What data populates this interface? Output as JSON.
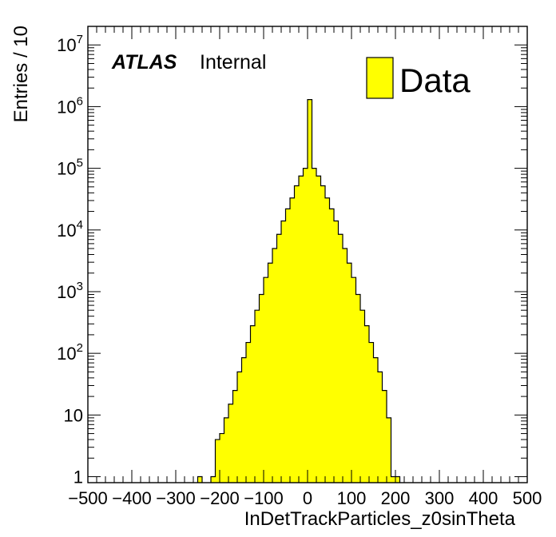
{
  "chart_data": {
    "type": "histogram",
    "xlabel": "InDetTrackParticles_z0sinTheta",
    "ylabel": "Entries / 10",
    "xlim": [
      -500,
      500
    ],
    "ylim": [
      0.8,
      20000000
    ],
    "yscale": "log",
    "atlas_label": "ATLAS",
    "atlas_status": "Internal",
    "legend": {
      "position": "top-right",
      "entries": [
        {
          "label": "Data",
          "color": "#ffff00"
        }
      ]
    },
    "fill_color": "#ffff00",
    "bin_width": 10,
    "bins": [
      {
        "x0": -250,
        "x1": -240,
        "y": 1
      },
      {
        "x0": -220,
        "x1": -210,
        "y": 1
      },
      {
        "x0": -210,
        "x1": -200,
        "y": 4
      },
      {
        "x0": -200,
        "x1": -190,
        "y": 5
      },
      {
        "x0": -190,
        "x1": -180,
        "y": 9
      },
      {
        "x0": -180,
        "x1": -170,
        "y": 15
      },
      {
        "x0": -170,
        "x1": -160,
        "y": 25
      },
      {
        "x0": -160,
        "x1": -150,
        "y": 50
      },
      {
        "x0": -150,
        "x1": -140,
        "y": 85
      },
      {
        "x0": -140,
        "x1": -130,
        "y": 150
      },
      {
        "x0": -130,
        "x1": -120,
        "y": 280
      },
      {
        "x0": -120,
        "x1": -110,
        "y": 500
      },
      {
        "x0": -110,
        "x1": -100,
        "y": 900
      },
      {
        "x0": -100,
        "x1": -90,
        "y": 1700
      },
      {
        "x0": -90,
        "x1": -80,
        "y": 2900
      },
      {
        "x0": -80,
        "x1": -70,
        "y": 5000
      },
      {
        "x0": -70,
        "x1": -60,
        "y": 8500
      },
      {
        "x0": -60,
        "x1": -50,
        "y": 14000
      },
      {
        "x0": -50,
        "x1": -40,
        "y": 22000
      },
      {
        "x0": -40,
        "x1": -30,
        "y": 33000
      },
      {
        "x0": -30,
        "x1": -20,
        "y": 52000
      },
      {
        "x0": -20,
        "x1": -10,
        "y": 75000
      },
      {
        "x0": -10,
        "x1": 0,
        "y": 100000
      },
      {
        "x0": 0,
        "x1": 10,
        "y": 1300000
      },
      {
        "x0": 10,
        "x1": 20,
        "y": 100000
      },
      {
        "x0": 20,
        "x1": 30,
        "y": 75000
      },
      {
        "x0": 30,
        "x1": 40,
        "y": 52000
      },
      {
        "x0": 40,
        "x1": 50,
        "y": 33000
      },
      {
        "x0": 50,
        "x1": 60,
        "y": 22000
      },
      {
        "x0": 60,
        "x1": 70,
        "y": 14000
      },
      {
        "x0": 70,
        "x1": 80,
        "y": 8500
      },
      {
        "x0": 80,
        "x1": 90,
        "y": 5000
      },
      {
        "x0": 90,
        "x1": 100,
        "y": 2900
      },
      {
        "x0": 100,
        "x1": 110,
        "y": 1700
      },
      {
        "x0": 110,
        "x1": 120,
        "y": 900
      },
      {
        "x0": 120,
        "x1": 130,
        "y": 500
      },
      {
        "x0": 130,
        "x1": 140,
        "y": 280
      },
      {
        "x0": 140,
        "x1": 150,
        "y": 150
      },
      {
        "x0": 150,
        "x1": 160,
        "y": 85
      },
      {
        "x0": 160,
        "x1": 170,
        "y": 50
      },
      {
        "x0": 170,
        "x1": 180,
        "y": 25
      },
      {
        "x0": 180,
        "x1": 190,
        "y": 9
      },
      {
        "x0": 190,
        "x1": 200,
        "y": 1
      },
      {
        "x0": 200,
        "x1": 210,
        "y": 1
      }
    ],
    "x_ticks": [
      {
        "value": -500,
        "label": "−500"
      },
      {
        "value": -400,
        "label": "−400"
      },
      {
        "value": -300,
        "label": "−300"
      },
      {
        "value": -200,
        "label": "−200"
      },
      {
        "value": -100,
        "label": "−100"
      },
      {
        "value": 0,
        "label": "0"
      },
      {
        "value": 100,
        "label": "100"
      },
      {
        "value": 200,
        "label": "200"
      },
      {
        "value": 300,
        "label": "300"
      },
      {
        "value": 400,
        "label": "400"
      },
      {
        "value": 500,
        "label": "500"
      }
    ],
    "y_ticks": [
      {
        "value": 1,
        "base": "1",
        "exp": ""
      },
      {
        "value": 10,
        "base": "10",
        "exp": ""
      },
      {
        "value": 100,
        "base": "10",
        "exp": "2"
      },
      {
        "value": 1000,
        "base": "10",
        "exp": "3"
      },
      {
        "value": 10000,
        "base": "10",
        "exp": "4"
      },
      {
        "value": 100000,
        "base": "10",
        "exp": "5"
      },
      {
        "value": 1000000,
        "base": "10",
        "exp": "6"
      },
      {
        "value": 10000000,
        "base": "10",
        "exp": "7"
      }
    ]
  }
}
